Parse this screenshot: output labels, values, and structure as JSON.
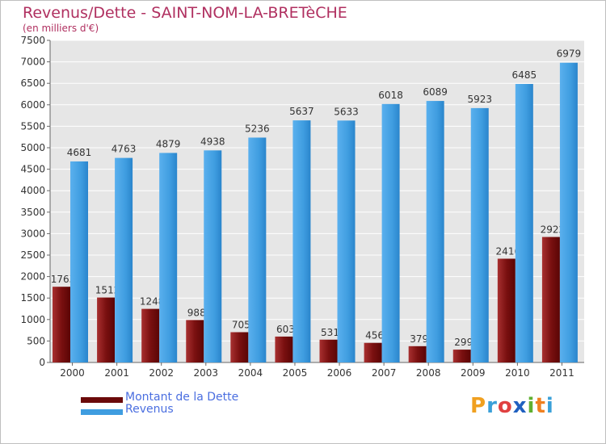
{
  "header": {
    "title": "Revenus/Dette - SAINT-NOM-LA-BRETèCHE",
    "subtitle": "(en milliers d'€)"
  },
  "legend": {
    "items": [
      {
        "label": "Montant de la Dette",
        "color": "#7a1010"
      },
      {
        "label": "Revenus",
        "color": "#3f9de0"
      }
    ]
  },
  "logo": {
    "letters": [
      "P",
      "r",
      "o",
      "x",
      "i",
      "t",
      "i"
    ],
    "colors": [
      "#f0a020",
      "#3aa0d8",
      "#e04040",
      "#2060c0",
      "#60b030",
      "#f08020",
      "#3aa0d8"
    ]
  },
  "chart_data": {
    "type": "bar",
    "categories": [
      "2000",
      "2001",
      "2002",
      "2003",
      "2004",
      "2005",
      "2006",
      "2007",
      "2008",
      "2009",
      "2010",
      "2011"
    ],
    "series": [
      {
        "name": "Montant de la Dette",
        "color": "#7a1010",
        "values": [
          1763,
          1512,
          1248,
          988,
          705,
          603,
          531,
          456,
          379,
          299,
          2416,
          2922
        ]
      },
      {
        "name": "Revenus",
        "color": "#3f9de0",
        "values": [
          4681,
          4763,
          4879,
          4938,
          5236,
          5637,
          5633,
          6018,
          6089,
          5923,
          6485,
          6979
        ]
      }
    ],
    "ylim": [
      0,
      7500
    ],
    "yticks": [
      "0",
      "500",
      "1000",
      "1500",
      "2000",
      "2500",
      "3000",
      "3500",
      "4000",
      "4500",
      "5000",
      "5500",
      "6000",
      "6500",
      "7000",
      "7500"
    ],
    "grid": true,
    "legend_position": "bottom-left"
  }
}
